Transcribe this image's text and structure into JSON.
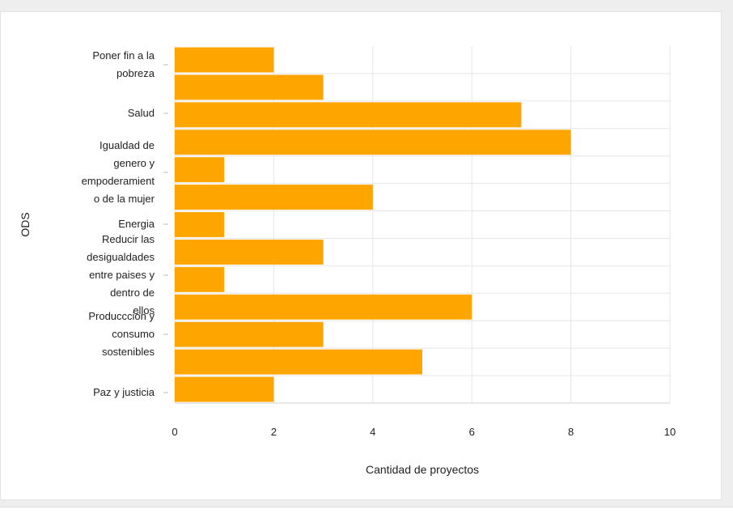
{
  "chart_data": {
    "type": "bar",
    "orientation": "horizontal",
    "xlabel": "Cantidad de proyectos",
    "ylabel": "ODS",
    "xlim": [
      0,
      10
    ],
    "x_ticks": [
      0,
      2,
      4,
      6,
      8,
      10
    ],
    "grid": true,
    "bar_color": "#FFA500",
    "category_labels": [
      [
        "Poner fin a la",
        "pobreza"
      ],
      [
        "Salud"
      ],
      [
        "Igualdad de",
        "genero y",
        "empoderamient",
        "o de la mujer"
      ],
      [
        "Energia"
      ],
      [
        "Reducir las",
        "desigualdades",
        "entre paises y",
        "dentro de",
        "ellos"
      ],
      [
        "Produccción y",
        "consumo",
        "sostenibles"
      ],
      [
        "Paz y justicia"
      ]
    ],
    "values": [
      2,
      3,
      7,
      8,
      1,
      4,
      1,
      3,
      1,
      6,
      3,
      5,
      2
    ]
  }
}
